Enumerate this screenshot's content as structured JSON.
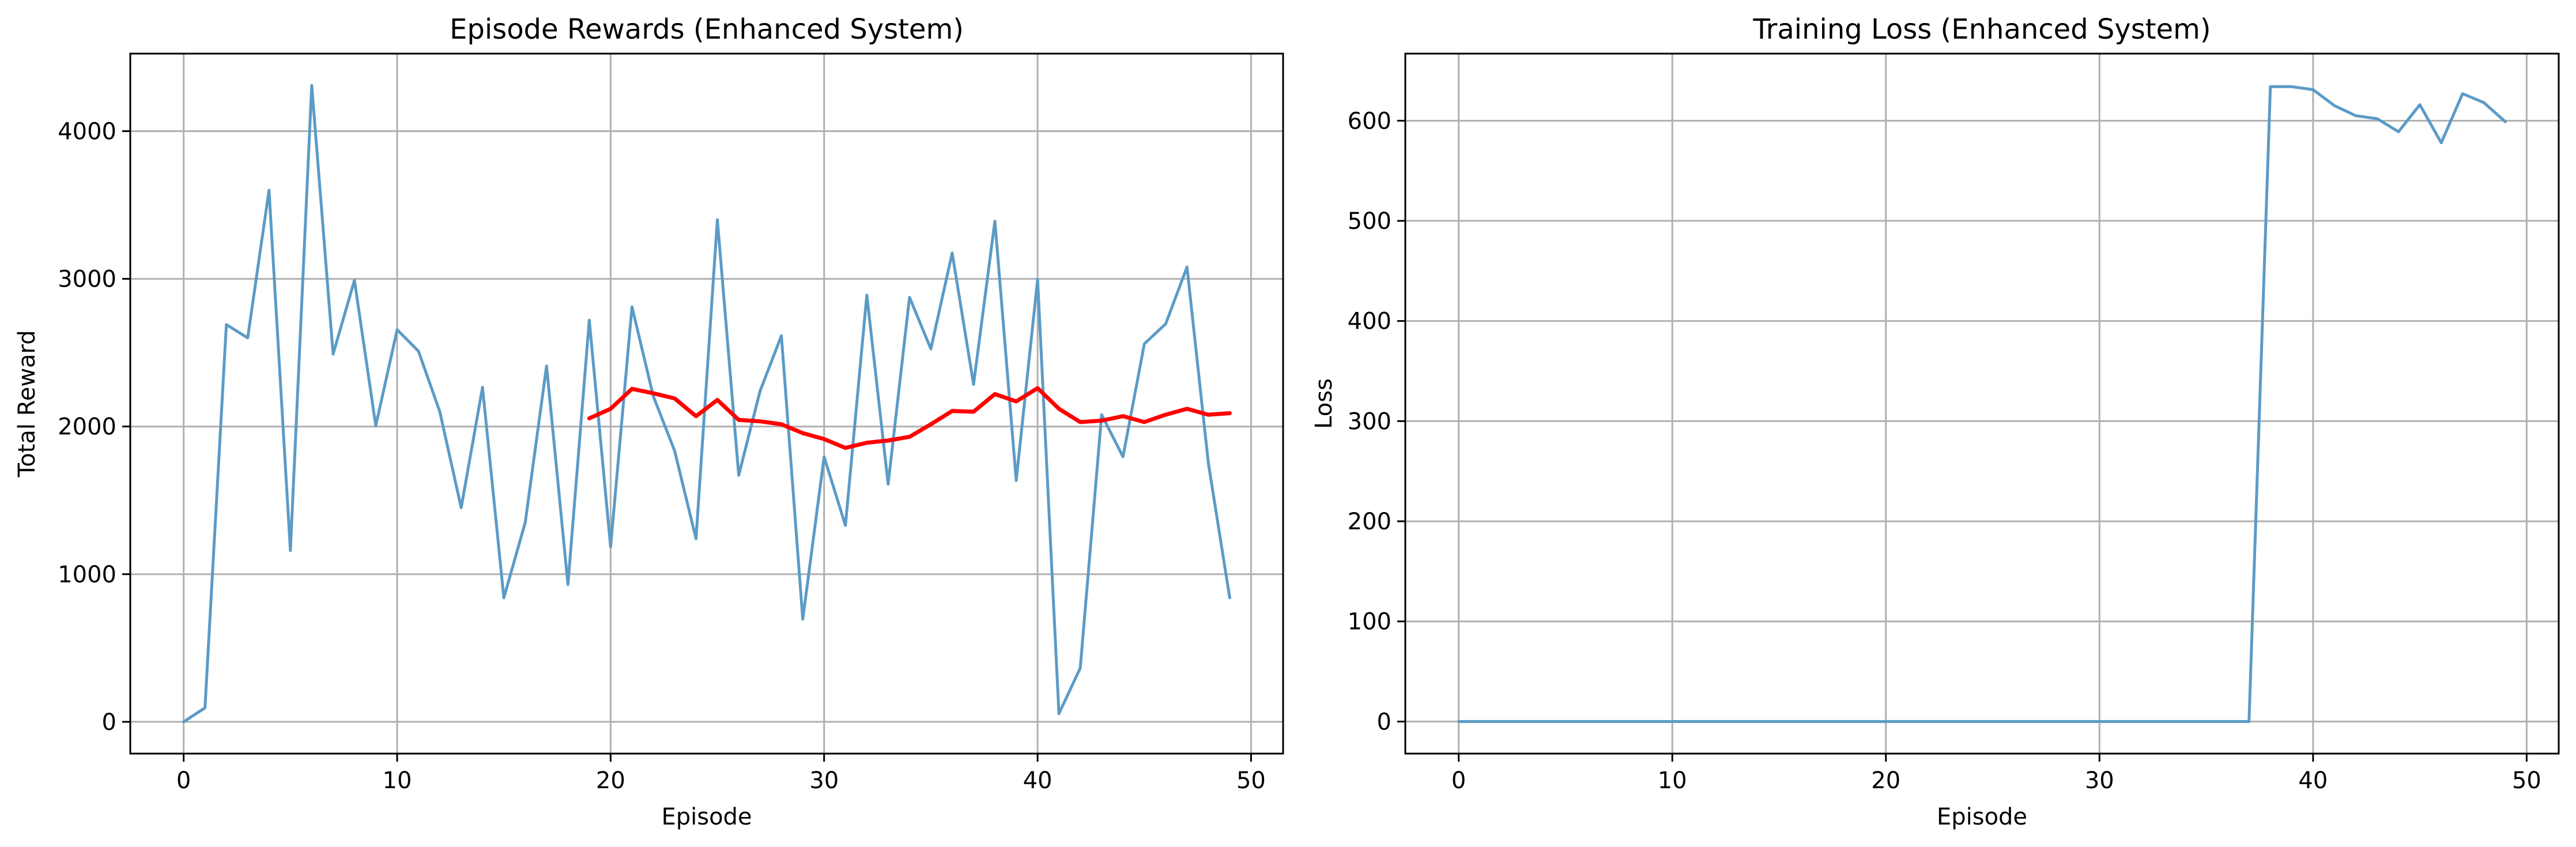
{
  "chart_data": [
    {
      "type": "line",
      "title": "Episode Rewards (Enhanced System)",
      "xlabel": "Episode",
      "ylabel": "Total Reward",
      "xlim": [
        -2.5,
        51.5
      ],
      "ylim": [
        -215,
        4525
      ],
      "xticks": [
        0,
        10,
        20,
        30,
        40,
        50
      ],
      "yticks": [
        0,
        1000,
        2000,
        3000,
        4000
      ],
      "grid": true,
      "series": [
        {
          "color": "#5b9bc6",
          "x": [
            0,
            1,
            2,
            3,
            4,
            5,
            6,
            7,
            8,
            9,
            10,
            11,
            12,
            13,
            14,
            15,
            16,
            17,
            18,
            19,
            20,
            21,
            22,
            23,
            24,
            25,
            26,
            27,
            28,
            29,
            30,
            31,
            32,
            33,
            34,
            35,
            36,
            37,
            38,
            39,
            40,
            41,
            42,
            43,
            44,
            45,
            46,
            47,
            48,
            49
          ],
          "y": [
            0,
            95,
            2690,
            2600,
            3600,
            1160,
            4310,
            2490,
            2990,
            2005,
            2655,
            2510,
            2100,
            1450,
            2265,
            840,
            1350,
            2410,
            930,
            2720,
            1185,
            2810,
            2205,
            1835,
            1240,
            3400,
            1670,
            2240,
            2615,
            695,
            1795,
            1330,
            2890,
            1610,
            2875,
            2525,
            3175,
            2285,
            3390,
            1635,
            2995,
            55,
            365,
            2080,
            1795,
            2560,
            2695,
            3080,
            1750,
            840
          ]
        },
        {
          "color": "#ff0000",
          "x": [
            19,
            20,
            21,
            22,
            23,
            24,
            25,
            26,
            27,
            28,
            29,
            30,
            31,
            32,
            33,
            34,
            35,
            36,
            37,
            38,
            39,
            40,
            41,
            42,
            43,
            44,
            45,
            46,
            47,
            48,
            49
          ],
          "y": [
            2055,
            2120,
            2255,
            2225,
            2190,
            2070,
            2180,
            2045,
            2035,
            2015,
            1955,
            1915,
            1855,
            1890,
            1905,
            1930,
            2015,
            2105,
            2100,
            2220,
            2170,
            2260,
            2120,
            2030,
            2040,
            2070,
            2030,
            2080,
            2120,
            2080,
            2090
          ]
        }
      ]
    },
    {
      "type": "line",
      "title": "Training Loss (Enhanced System)",
      "xlabel": "Episode",
      "ylabel": "Loss",
      "xlim": [
        -2.5,
        51.5
      ],
      "ylim": [
        -32,
        667
      ],
      "xticks": [
        0,
        10,
        20,
        30,
        40,
        50
      ],
      "yticks": [
        0,
        100,
        200,
        300,
        400,
        500,
        600
      ],
      "grid": true,
      "series": [
        {
          "color": "#5b9bc6",
          "x": [
            0,
            1,
            2,
            3,
            4,
            5,
            6,
            7,
            8,
            9,
            10,
            11,
            12,
            13,
            14,
            15,
            16,
            17,
            18,
            19,
            20,
            21,
            22,
            23,
            24,
            25,
            26,
            27,
            28,
            29,
            30,
            31,
            32,
            33,
            34,
            35,
            36,
            37,
            38,
            39,
            40,
            41,
            42,
            43,
            44,
            45,
            46,
            47,
            48,
            49
          ],
          "y": [
            0,
            0,
            0,
            0,
            0,
            0,
            0,
            0,
            0,
            0,
            0,
            0,
            0,
            0,
            0,
            0,
            0,
            0,
            0,
            0,
            0,
            0,
            0,
            0,
            0,
            0,
            0,
            0,
            0,
            0,
            0,
            0,
            0,
            0,
            0,
            0,
            0,
            0,
            634,
            634,
            631,
            615,
            605,
            602,
            589,
            616,
            578,
            627,
            618,
            599
          ]
        }
      ]
    }
  ]
}
